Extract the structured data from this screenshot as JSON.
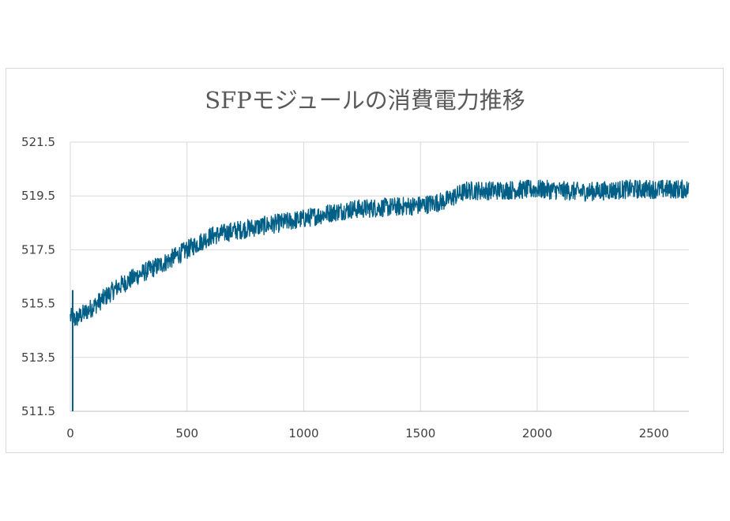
{
  "chart_data": {
    "type": "line",
    "title": "SFPモジュールの消費電力推移",
    "xlabel": "",
    "ylabel": "",
    "xlim": [
      0,
      2650
    ],
    "ylim": [
      511.5,
      521.5
    ],
    "x_ticks": [
      "0",
      "500",
      "1000",
      "1500",
      "2000",
      "2500"
    ],
    "y_ticks": [
      "511.5",
      "513.5",
      "515.5",
      "517.5",
      "519.5",
      "521.5"
    ],
    "grid": true,
    "legend": "none",
    "series_color": "#005f86",
    "trend": [
      {
        "x": 0,
        "y": 515.0
      },
      {
        "x": 20,
        "y": 514.9
      },
      {
        "x": 100,
        "y": 515.4
      },
      {
        "x": 200,
        "y": 516.1
      },
      {
        "x": 300,
        "y": 516.6
      },
      {
        "x": 400,
        "y": 517.0
      },
      {
        "x": 500,
        "y": 517.5
      },
      {
        "x": 600,
        "y": 518.0
      },
      {
        "x": 700,
        "y": 518.2
      },
      {
        "x": 800,
        "y": 518.35
      },
      {
        "x": 900,
        "y": 518.5
      },
      {
        "x": 1000,
        "y": 518.65
      },
      {
        "x": 1100,
        "y": 518.85
      },
      {
        "x": 1200,
        "y": 519.0
      },
      {
        "x": 1300,
        "y": 519.05
      },
      {
        "x": 1400,
        "y": 519.1
      },
      {
        "x": 1500,
        "y": 519.15
      },
      {
        "x": 1600,
        "y": 519.3
      },
      {
        "x": 1700,
        "y": 519.7
      },
      {
        "x": 1800,
        "y": 519.7
      },
      {
        "x": 2000,
        "y": 519.75
      },
      {
        "x": 2200,
        "y": 519.65
      },
      {
        "x": 2400,
        "y": 519.75
      },
      {
        "x": 2650,
        "y": 519.75
      }
    ],
    "noise_amplitude": 0.35,
    "spike": {
      "x": 10,
      "min": 511.5,
      "max": 516.0
    }
  }
}
